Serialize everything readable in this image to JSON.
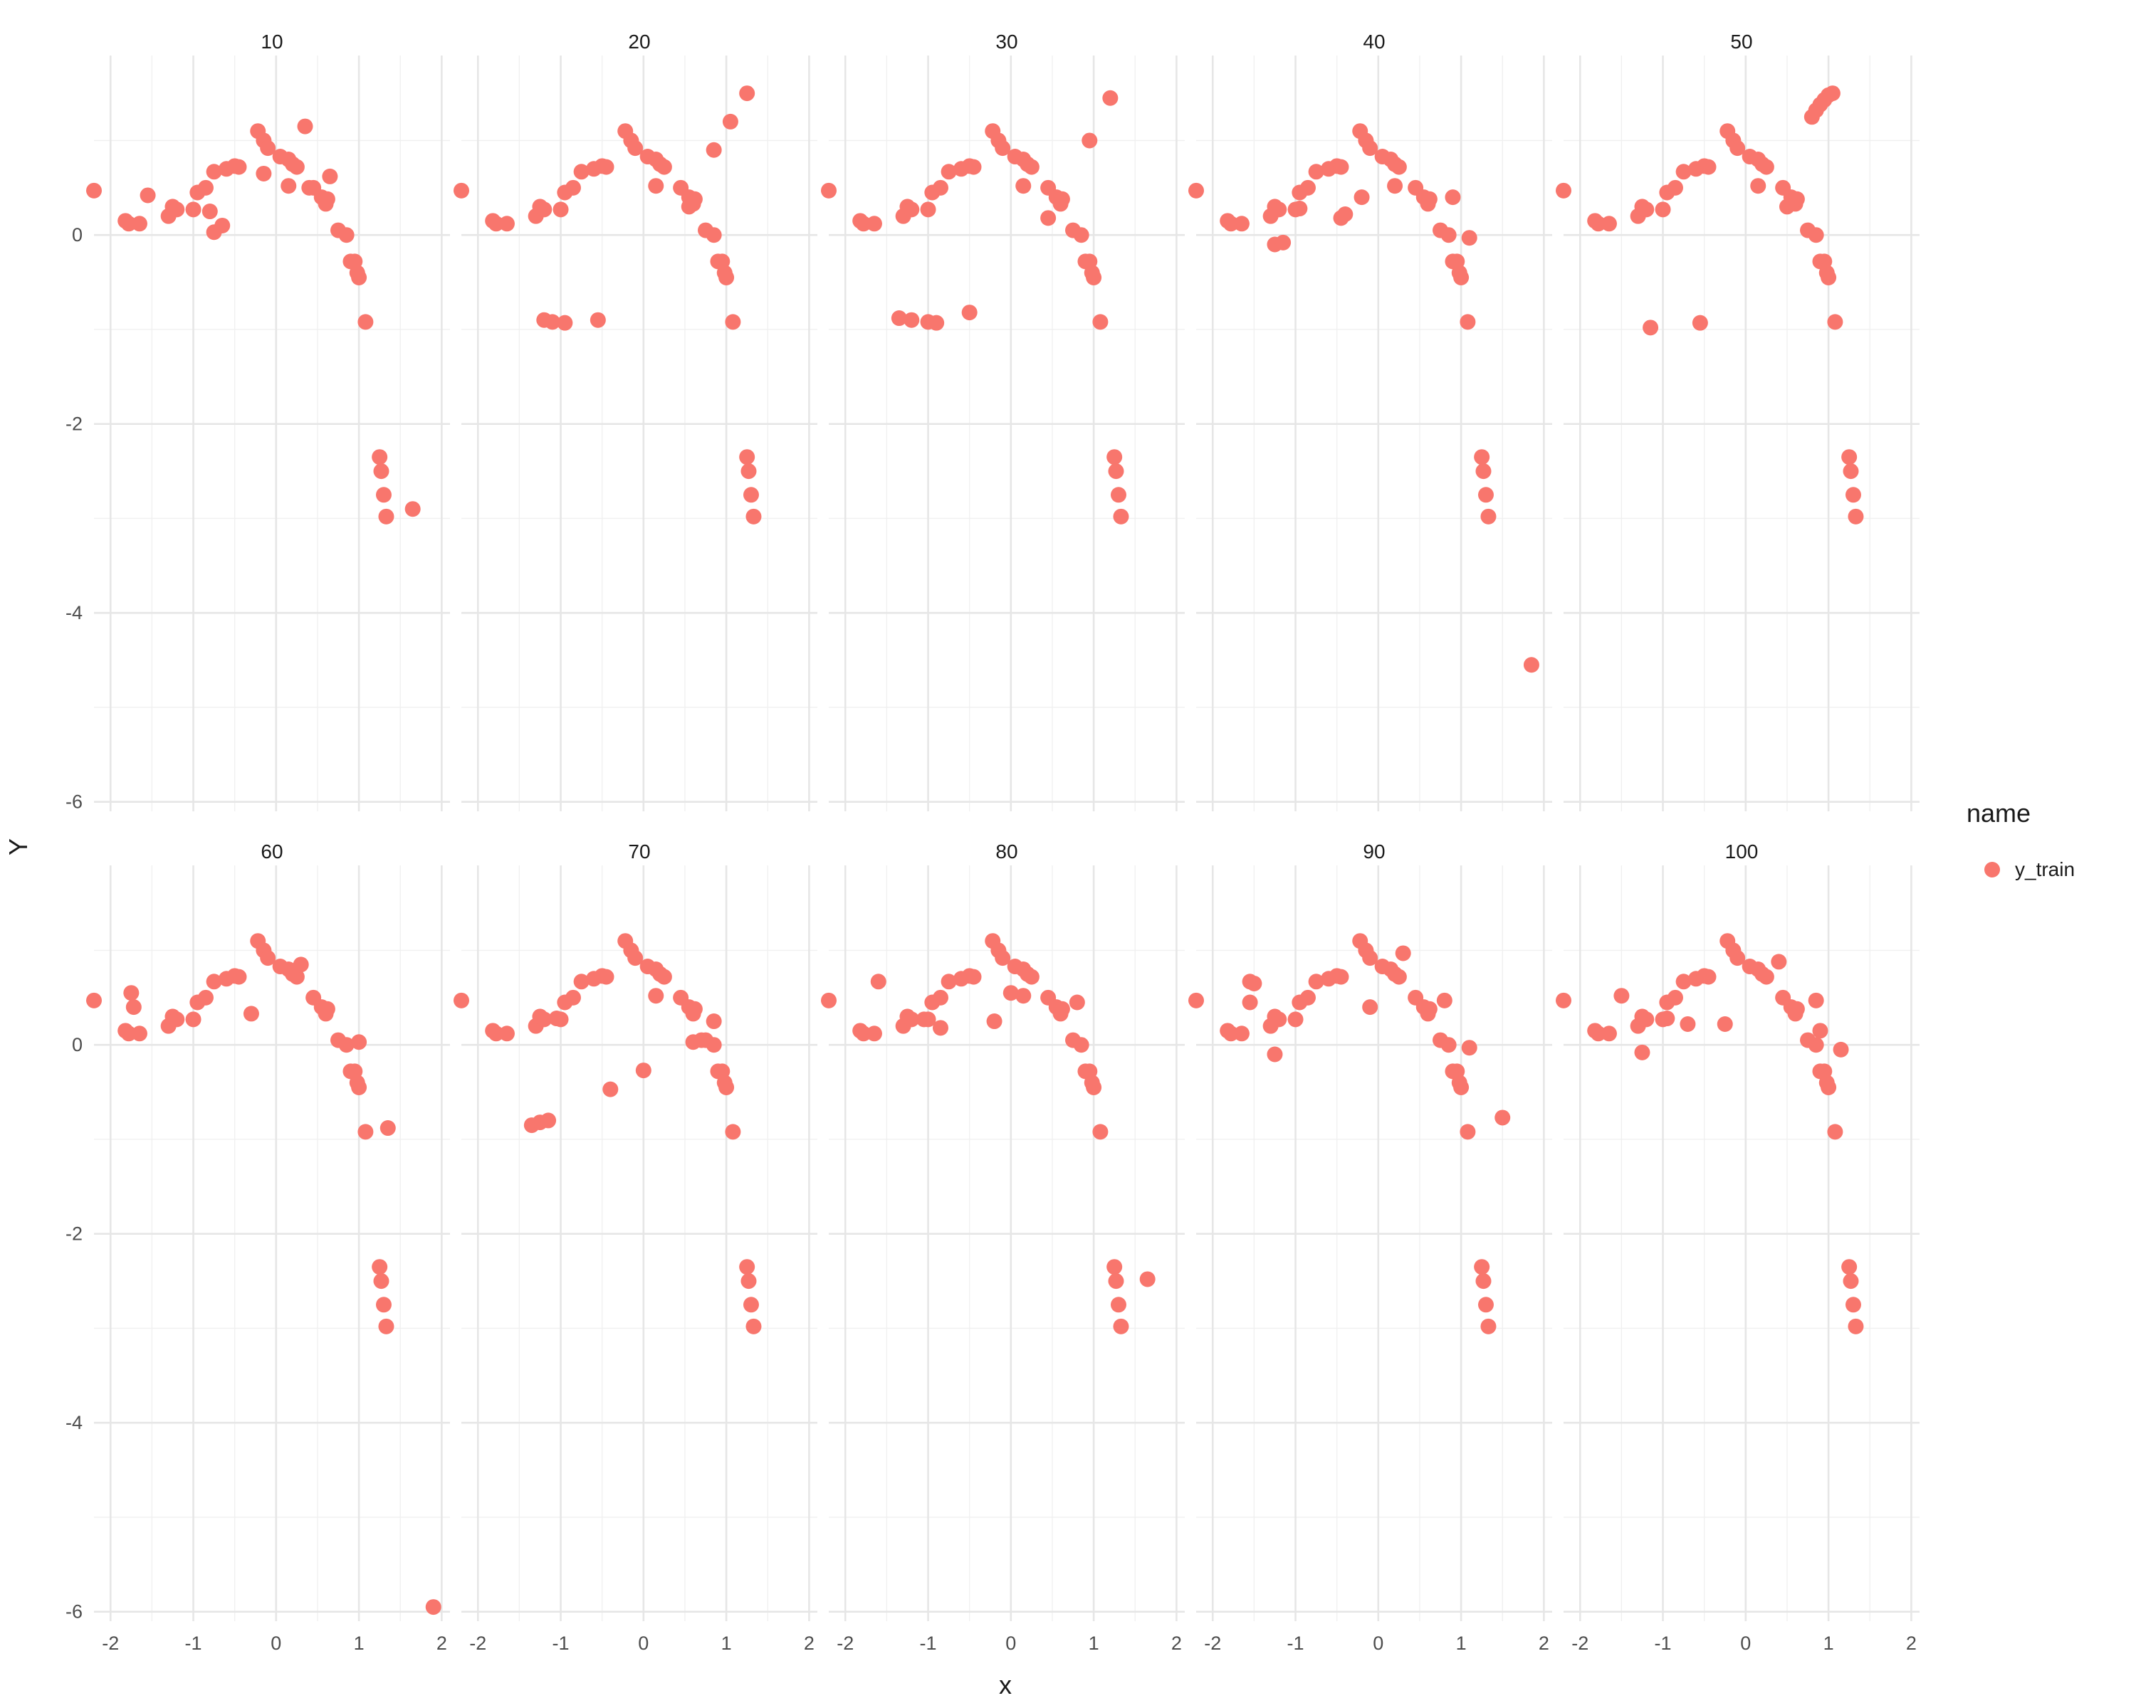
{
  "chart_data": {
    "type": "scatter",
    "xlabel": "x",
    "ylabel": "Y",
    "xlim": [
      -2.2,
      2.1
    ],
    "ylim": [
      -6.1,
      1.9
    ],
    "x_ticks": [
      "-2",
      "-1",
      "0",
      "1",
      "2"
    ],
    "x_tick_values": [
      -2,
      -1,
      0,
      1,
      2
    ],
    "y_ticks": [
      "-6",
      "-4",
      "-2",
      "0"
    ],
    "y_tick_values": [
      -6,
      -4,
      -2,
      0
    ],
    "grid": true,
    "legend": {
      "title": "name",
      "placement": "right",
      "entries": [
        "y_train"
      ]
    },
    "series_color": "#F8766D",
    "base_points": [
      [
        -2.2,
        0.47
      ],
      [
        -1.82,
        0.15
      ],
      [
        -1.78,
        0.12
      ],
      [
        -1.65,
        0.12
      ],
      [
        -1.3,
        0.2
      ],
      [
        -1.25,
        0.3
      ],
      [
        -1.2,
        0.27
      ],
      [
        -1.0,
        0.27
      ],
      [
        -0.95,
        0.45
      ],
      [
        -0.85,
        0.5
      ],
      [
        -0.75,
        0.67
      ],
      [
        -0.6,
        0.7
      ],
      [
        -0.5,
        0.73
      ],
      [
        -0.45,
        0.72
      ],
      [
        -0.22,
        1.1
      ],
      [
        -0.15,
        1.0
      ],
      [
        -0.1,
        0.92
      ],
      [
        0.05,
        0.83
      ],
      [
        0.15,
        0.8
      ],
      [
        0.2,
        0.75
      ],
      [
        0.25,
        0.72
      ],
      [
        0.45,
        0.5
      ],
      [
        0.55,
        0.4
      ],
      [
        0.6,
        0.33
      ],
      [
        0.62,
        0.38
      ],
      [
        0.75,
        0.05
      ],
      [
        0.85,
        0.0
      ],
      [
        0.9,
        -0.28
      ],
      [
        0.95,
        -0.28
      ],
      [
        0.98,
        -0.4
      ],
      [
        1.0,
        -0.45
      ],
      [
        1.08,
        -0.92
      ],
      [
        1.25,
        -2.35
      ],
      [
        1.27,
        -2.5
      ],
      [
        1.3,
        -2.75
      ],
      [
        1.33,
        -2.98
      ]
    ],
    "panels": [
      {
        "label": "10",
        "extra": [
          [
            -1.55,
            0.42
          ],
          [
            -0.8,
            0.25
          ],
          [
            -0.75,
            0.03
          ],
          [
            -0.65,
            0.1
          ],
          [
            -0.15,
            0.65
          ],
          [
            0.15,
            0.52
          ],
          [
            0.35,
            1.15
          ],
          [
            0.4,
            0.5
          ],
          [
            0.65,
            0.62
          ],
          [
            1.65,
            -2.9
          ]
        ]
      },
      {
        "label": "20",
        "extra": [
          [
            -1.2,
            -0.9
          ],
          [
            -1.1,
            -0.92
          ],
          [
            -0.95,
            -0.93
          ],
          [
            -0.55,
            -0.9
          ],
          [
            0.15,
            0.52
          ],
          [
            0.55,
            0.3
          ],
          [
            0.85,
            0.9
          ],
          [
            1.05,
            1.2
          ],
          [
            1.25,
            1.5
          ]
        ]
      },
      {
        "label": "30",
        "extra": [
          [
            -1.35,
            -0.88
          ],
          [
            -1.2,
            -0.9
          ],
          [
            -1.0,
            -0.92
          ],
          [
            -0.9,
            -0.93
          ],
          [
            -0.5,
            -0.82
          ],
          [
            0.15,
            0.52
          ],
          [
            0.45,
            0.18
          ],
          [
            0.95,
            1.0
          ],
          [
            1.2,
            1.45
          ]
        ]
      },
      {
        "label": "40",
        "extra": [
          [
            -1.25,
            -0.1
          ],
          [
            -1.15,
            -0.08
          ],
          [
            -0.95,
            0.28
          ],
          [
            -0.45,
            0.18
          ],
          [
            -0.4,
            0.22
          ],
          [
            -0.2,
            0.4
          ],
          [
            0.2,
            0.52
          ],
          [
            0.9,
            0.4
          ],
          [
            1.1,
            -0.03
          ],
          [
            1.85,
            -4.55
          ]
        ]
      },
      {
        "label": "50",
        "extra": [
          [
            -1.15,
            -0.98
          ],
          [
            -0.55,
            -0.93
          ],
          [
            0.15,
            0.52
          ],
          [
            0.5,
            0.3
          ],
          [
            0.8,
            1.25
          ],
          [
            0.85,
            1.32
          ],
          [
            0.9,
            1.38
          ],
          [
            0.95,
            1.43
          ],
          [
            1.0,
            1.48
          ],
          [
            1.05,
            1.5
          ]
        ]
      },
      {
        "label": "60",
        "extra": [
          [
            -1.75,
            0.55
          ],
          [
            -1.72,
            0.4
          ],
          [
            -0.3,
            0.33
          ],
          [
            0.3,
            0.85
          ],
          [
            1.0,
            0.03
          ],
          [
            1.35,
            -0.88
          ],
          [
            1.9,
            -5.95
          ]
        ]
      },
      {
        "label": "70",
        "extra": [
          [
            -1.35,
            -0.85
          ],
          [
            -1.25,
            -0.82
          ],
          [
            -1.15,
            -0.8
          ],
          [
            -1.05,
            0.28
          ],
          [
            -0.4,
            -0.47
          ],
          [
            0.0,
            -0.27
          ],
          [
            0.15,
            0.52
          ],
          [
            0.6,
            0.03
          ],
          [
            0.7,
            0.05
          ],
          [
            0.85,
            0.25
          ]
        ]
      },
      {
        "label": "80",
        "extra": [
          [
            -1.6,
            0.67
          ],
          [
            -1.05,
            0.27
          ],
          [
            -0.85,
            0.18
          ],
          [
            -0.2,
            0.25
          ],
          [
            0.0,
            0.55
          ],
          [
            0.15,
            0.52
          ],
          [
            0.8,
            0.45
          ],
          [
            1.65,
            -2.48
          ]
        ]
      },
      {
        "label": "90",
        "extra": [
          [
            -1.55,
            0.67
          ],
          [
            -1.5,
            0.65
          ],
          [
            -1.55,
            0.45
          ],
          [
            -1.25,
            -0.1
          ],
          [
            -0.1,
            0.4
          ],
          [
            0.3,
            0.97
          ],
          [
            0.8,
            0.47
          ],
          [
            1.1,
            -0.03
          ],
          [
            1.5,
            -0.77
          ]
        ]
      },
      {
        "label": "100",
        "extra": [
          [
            -1.5,
            0.52
          ],
          [
            -1.25,
            -0.08
          ],
          [
            -0.95,
            0.28
          ],
          [
            -0.7,
            0.22
          ],
          [
            -0.25,
            0.22
          ],
          [
            0.4,
            0.88
          ],
          [
            0.85,
            0.47
          ],
          [
            0.9,
            0.15
          ],
          [
            1.15,
            -0.05
          ]
        ]
      }
    ]
  }
}
